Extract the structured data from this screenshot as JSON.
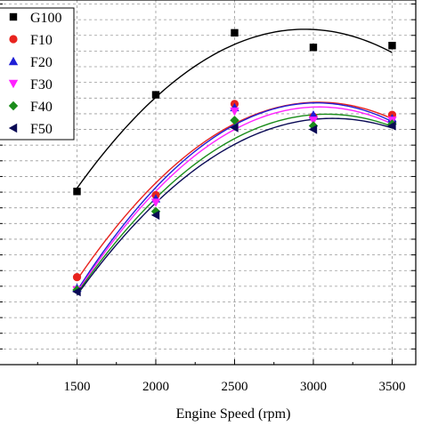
{
  "chart_data": {
    "type": "scatter",
    "xlabel": "Engine Speed (rpm)",
    "ylabel": "",
    "title": "",
    "x": [
      1500,
      2000,
      2500,
      3000,
      3500
    ],
    "x_ticks": [
      "1500",
      "2000",
      "2500",
      "3000",
      "3500"
    ],
    "xlim": [
      1000,
      3650
    ],
    "ylim": [
      0,
      100
    ],
    "grid": "dashed, both axes",
    "legend_position": "top-left",
    "fit": "quadratic trend line per series",
    "series": [
      {
        "name": "G100",
        "marker": "square",
        "color": "#000000",
        "values": [
          47.5,
          74,
          91,
          87,
          87.5
        ]
      },
      {
        "name": "F10",
        "marker": "circle",
        "color": "#e8231e",
        "values": [
          24,
          46.5,
          71.5,
          68,
          68.5
        ]
      },
      {
        "name": "F20",
        "marker": "triangle-up",
        "color": "#1f1fd6",
        "values": [
          21,
          45.5,
          70.5,
          68.5,
          67.5
        ]
      },
      {
        "name": "F30",
        "marker": "triangle-down",
        "color": "#ff22ff",
        "values": [
          20.5,
          44.5,
          69.5,
          67,
          67
        ]
      },
      {
        "name": "F40",
        "marker": "diamond",
        "color": "#1a8c1a",
        "values": [
          20.5,
          42,
          67,
          65.5,
          66
        ]
      },
      {
        "name": "F50",
        "marker": "triangle-left",
        "color": "#0a0a55",
        "values": [
          20,
          41,
          65,
          64.5,
          65.5
        ]
      }
    ]
  }
}
